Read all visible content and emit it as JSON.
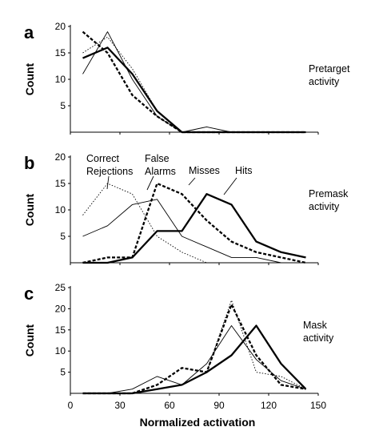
{
  "chart_data": [
    {
      "type": "line",
      "panel": "a",
      "ylabel": "Count",
      "annotation": [
        "Pretarget",
        "activity"
      ],
      "ylim": [
        0,
        20
      ],
      "yticks": [
        "5",
        "10",
        "15",
        "20"
      ],
      "x": [
        7.5,
        22.5,
        37.5,
        52.5,
        67.5,
        82.5,
        97.5,
        112.5,
        127.5,
        142.5
      ],
      "series": [
        {
          "style": "dotted-thin",
          "values": [
            15,
            18,
            12,
            4,
            0,
            0,
            0,
            0,
            0,
            0
          ]
        },
        {
          "style": "solid-thin",
          "values": [
            11,
            19,
            10,
            3,
            0,
            1,
            0,
            0,
            0,
            0
          ]
        },
        {
          "style": "dashed-thick",
          "values": [
            19,
            15,
            7,
            3,
            0,
            0,
            0,
            0,
            0,
            0
          ]
        },
        {
          "style": "solid-thick",
          "values": [
            14,
            16,
            11,
            4,
            0,
            0,
            0,
            0,
            0,
            0
          ]
        }
      ]
    },
    {
      "type": "line",
      "panel": "b",
      "ylabel": "Count",
      "annotation": [
        "Premask",
        "activity"
      ],
      "series_labels": [
        [
          "Correct",
          "Rejections"
        ],
        [
          "False",
          "Alarms"
        ],
        [
          "Misses"
        ],
        [
          "Hits"
        ]
      ],
      "ylim": [
        0,
        20
      ],
      "yticks": [
        "5",
        "10",
        "15",
        "20"
      ],
      "x": [
        7.5,
        22.5,
        37.5,
        52.5,
        67.5,
        82.5,
        97.5,
        112.5,
        127.5,
        142.5
      ],
      "series": [
        {
          "style": "dotted-thin",
          "values": [
            9,
            15,
            13,
            5,
            2,
            0,
            0,
            0,
            0,
            0
          ]
        },
        {
          "style": "solid-thin",
          "values": [
            5,
            7,
            11,
            12,
            5,
            3,
            1,
            1,
            0,
            0
          ]
        },
        {
          "style": "dashed-thick",
          "values": [
            0,
            1,
            1,
            15,
            13,
            8,
            4,
            2,
            1,
            0
          ]
        },
        {
          "style": "solid-thick",
          "values": [
            0,
            0,
            1,
            6,
            6,
            13,
            11,
            4,
            2,
            1
          ]
        }
      ]
    },
    {
      "type": "line",
      "panel": "c",
      "ylabel": "Count",
      "annotation": [
        "Mask",
        "activity"
      ],
      "ylim": [
        0,
        25
      ],
      "yticks": [
        "5",
        "10",
        "15",
        "20",
        "25"
      ],
      "xlabel": "Normalized activation",
      "xlim": [
        0,
        150
      ],
      "xticks": [
        "0",
        "30",
        "60",
        "90",
        "120",
        "150"
      ],
      "x": [
        7.5,
        22.5,
        37.5,
        52.5,
        67.5,
        82.5,
        97.5,
        112.5,
        127.5,
        142.5
      ],
      "series": [
        {
          "style": "dotted-thin",
          "values": [
            0,
            0,
            0,
            1,
            2,
            5,
            22,
            5,
            4,
            1
          ]
        },
        {
          "style": "solid-thin",
          "values": [
            0,
            0,
            1,
            4,
            2,
            7,
            16,
            8,
            3,
            1
          ]
        },
        {
          "style": "dashed-thick",
          "values": [
            0,
            0,
            0,
            2,
            6,
            5,
            21,
            9,
            2,
            1
          ]
        },
        {
          "style": "solid-thick",
          "values": [
            0,
            0,
            0,
            1,
            2,
            5,
            9,
            16,
            7,
            1
          ]
        }
      ]
    }
  ]
}
